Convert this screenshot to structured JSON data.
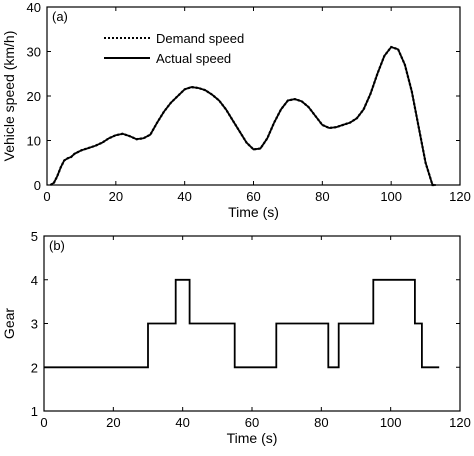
{
  "chart_data": [
    {
      "type": "line",
      "panel_label": "(a)",
      "xlabel": "Time (s)",
      "ylabel": "Vehicle speed (km/h)",
      "xlim": [
        0,
        120
      ],
      "ylim": [
        0,
        40
      ],
      "xticks": [
        0,
        20,
        40,
        60,
        80,
        100,
        120
      ],
      "yticks": [
        0,
        10,
        20,
        30,
        40
      ],
      "grid": false,
      "legend_position": "top-left",
      "series": [
        {
          "name": "Demand speed",
          "style": "dotted",
          "x": [
            1,
            2,
            3,
            4,
            5,
            6,
            7,
            8,
            10,
            12,
            14,
            16,
            18,
            20,
            22,
            24,
            26,
            28,
            30,
            32,
            34,
            36,
            38,
            40,
            42,
            44,
            46,
            48,
            50,
            52,
            54,
            56,
            58,
            60,
            62,
            64,
            66,
            68,
            70,
            72,
            74,
            76,
            78,
            80,
            82,
            84,
            86,
            88,
            90,
            92,
            94,
            96,
            98,
            100,
            102,
            104,
            106,
            108,
            110,
            112,
            113
          ],
          "y": [
            0,
            0.5,
            2,
            4,
            5.5,
            6,
            6.3,
            7,
            7.8,
            8.3,
            8.8,
            9.5,
            10.5,
            11.2,
            11.5,
            11,
            10.3,
            10.5,
            11.3,
            14,
            16.5,
            18.5,
            20,
            21.5,
            22,
            21.8,
            21.3,
            20.3,
            19,
            17,
            14.5,
            12,
            9.5,
            8,
            8.2,
            10.5,
            14,
            17,
            19,
            19.3,
            18.8,
            17.5,
            15.5,
            13.5,
            12.8,
            13,
            13.5,
            14,
            15,
            17,
            20.5,
            25,
            29,
            31,
            30.5,
            27,
            21,
            13,
            5,
            0,
            0
          ]
        },
        {
          "name": "Actual speed",
          "style": "solid",
          "x": [
            1,
            2,
            3,
            4,
            5,
            6,
            7,
            8,
            10,
            12,
            14,
            16,
            18,
            20,
            22,
            24,
            26,
            28,
            30,
            32,
            34,
            36,
            38,
            40,
            42,
            44,
            46,
            48,
            50,
            52,
            54,
            56,
            58,
            60,
            62,
            64,
            66,
            68,
            70,
            72,
            74,
            76,
            78,
            80,
            82,
            84,
            86,
            88,
            90,
            92,
            94,
            96,
            98,
            100,
            102,
            104,
            106,
            108,
            110,
            112,
            113
          ],
          "y": [
            0,
            0.5,
            2,
            4,
            5.5,
            6,
            6.3,
            7,
            7.8,
            8.3,
            8.8,
            9.5,
            10.5,
            11.2,
            11.5,
            11,
            10.3,
            10.5,
            11.3,
            14,
            16.5,
            18.5,
            20,
            21.5,
            22,
            21.8,
            21.3,
            20.3,
            19,
            17,
            14.5,
            12,
            9.5,
            8,
            8.2,
            10.5,
            14,
            17,
            19,
            19.3,
            18.8,
            17.5,
            15.5,
            13.5,
            12.8,
            13,
            13.5,
            14,
            15,
            17,
            20.5,
            25,
            29,
            31,
            30.5,
            27,
            21,
            13,
            5,
            0,
            0
          ]
        }
      ]
    },
    {
      "type": "line",
      "panel_label": "(b)",
      "xlabel": "Time (s)",
      "ylabel": "Gear",
      "xlim": [
        0,
        120
      ],
      "ylim": [
        1,
        5
      ],
      "xticks": [
        0,
        20,
        40,
        60,
        80,
        100,
        120
      ],
      "yticks": [
        1,
        2,
        3,
        4,
        5
      ],
      "grid": false,
      "series": [
        {
          "style": "solid-step",
          "x": [
            0,
            30,
            30,
            38,
            38,
            42,
            42,
            55,
            55,
            67,
            67,
            82,
            82,
            85,
            85,
            95,
            95,
            107,
            107,
            109,
            109,
            114
          ],
          "y": [
            2,
            2,
            3,
            3,
            4,
            4,
            3,
            3,
            2,
            2,
            3,
            3,
            2,
            2,
            3,
            3,
            4,
            4,
            3,
            3,
            2,
            2
          ]
        }
      ]
    }
  ]
}
